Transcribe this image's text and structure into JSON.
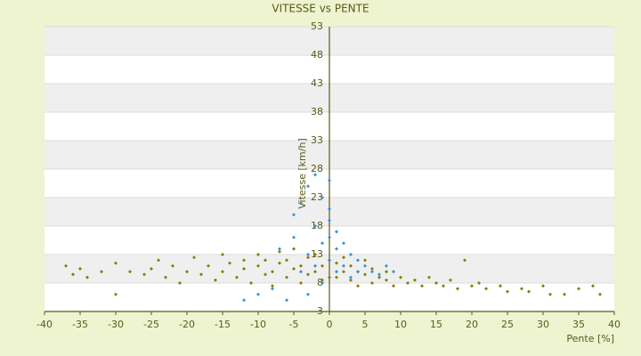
{
  "chart_data": {
    "type": "scatter",
    "title": "VITESSE vs PENTE",
    "x_label": "Pente [%]",
    "y_label": "Vitesse [km/h]",
    "xlim": [
      -40,
      40
    ],
    "ylim": [
      3,
      53
    ],
    "xticks": [
      -40,
      -35,
      -30,
      -25,
      -20,
      -15,
      -10,
      -5,
      0,
      5,
      10,
      15,
      20,
      25,
      30,
      35,
      40
    ],
    "yticks": [
      3,
      8,
      13,
      18,
      23,
      28,
      33,
      38,
      43,
      48,
      53
    ],
    "grid": true,
    "series": [
      {
        "color": "#808000",
        "x": [
          -37,
          -36,
          -35,
          -34,
          -32,
          -30,
          -30,
          -28,
          -26,
          -25,
          -24,
          -23,
          -22,
          -21,
          -20,
          -19,
          -18,
          -17,
          -16,
          -15,
          -15,
          -14,
          -13,
          -12,
          -12,
          -11,
          -10,
          -10,
          -9,
          -9,
          -8,
          -8,
          -7,
          -7,
          -6,
          -6,
          -5,
          -5,
          -4,
          -4,
          -3,
          -3,
          -2,
          -2,
          -1,
          -1,
          0,
          0,
          1,
          1,
          2,
          2,
          3,
          3,
          4,
          4,
          5,
          5,
          6,
          6,
          7,
          8,
          8,
          9,
          10,
          11,
          12,
          13,
          14,
          15,
          16,
          17,
          18,
          19,
          20,
          21,
          22,
          24,
          25,
          27,
          28,
          30,
          31,
          33,
          35,
          37,
          38
        ],
        "y": [
          11,
          9.5,
          10.5,
          9,
          10,
          6,
          11.5,
          10,
          9.5,
          10.5,
          12,
          9,
          11,
          8,
          10,
          12.5,
          9.5,
          11,
          8.5,
          13,
          10,
          11.5,
          9,
          12,
          10.5,
          8,
          11,
          13,
          9.5,
          12,
          10,
          7.5,
          11.5,
          13.5,
          9,
          12,
          10.5,
          14,
          8,
          11,
          12.5,
          9.5,
          10,
          13,
          11,
          8.5,
          12,
          9,
          11.5,
          9,
          10,
          12.5,
          8.5,
          11,
          10,
          7.5,
          9.5,
          12,
          8,
          10.5,
          9,
          8.5,
          10,
          7.5,
          9,
          8,
          8.5,
          7.5,
          9,
          8,
          7.5,
          8.5,
          7,
          12,
          7.5,
          8,
          7,
          7.5,
          6.5,
          7,
          6.5,
          7.5,
          6,
          6,
          7,
          7.5,
          6
        ]
      },
      {
        "color": "#3a8fd6",
        "x": [
          -6,
          -5,
          -5,
          -4,
          -4,
          -3,
          -3,
          -3,
          -2,
          -2,
          -2,
          -1,
          -1,
          -1,
          0,
          0,
          0,
          0,
          0,
          1,
          1,
          1,
          2,
          2,
          3,
          3,
          4,
          4,
          5,
          6,
          7,
          -8,
          -12,
          -10,
          -7,
          8,
          9
        ],
        "y": [
          5,
          16,
          20,
          22,
          10,
          25,
          13,
          6,
          27,
          18,
          11,
          23,
          15,
          8,
          26,
          21,
          19,
          16,
          12,
          14,
          10,
          17,
          11,
          15,
          13,
          9,
          12,
          10,
          11,
          10,
          9.5,
          7,
          5,
          6,
          14,
          11,
          10
        ]
      }
    ]
  }
}
